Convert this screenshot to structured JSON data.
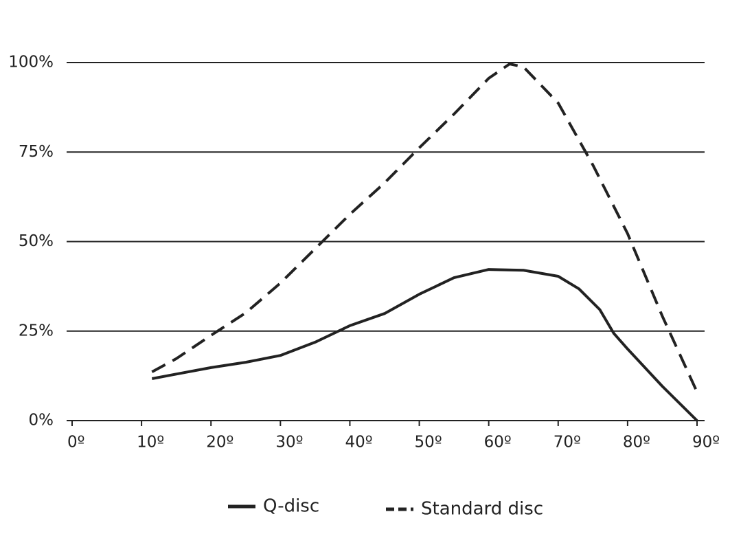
{
  "chart_data": {
    "type": "line",
    "series": [
      {
        "name": "Q-disc",
        "color": "#222222",
        "style": "solid",
        "x": [
          11.5,
          15,
          20,
          25,
          30,
          35,
          40,
          45,
          50,
          55,
          60,
          65,
          70,
          73,
          76,
          78,
          80,
          85,
          90
        ],
        "values": [
          11.7,
          13,
          14.8,
          16.3,
          18.2,
          21.9,
          26.5,
          29.9,
          35.3,
          39.9,
          42.2,
          42,
          40.3,
          36.8,
          31,
          24.4,
          20,
          9.6,
          0
        ]
      },
      {
        "name": "Standard disc",
        "color": "#222222",
        "style": "dashed",
        "x": [
          11.5,
          15,
          20,
          25,
          30,
          35,
          40,
          45,
          50,
          55,
          60,
          63,
          65,
          70,
          75,
          80,
          85,
          90
        ],
        "values": [
          13.6,
          17.3,
          23.8,
          30.1,
          38.4,
          48,
          57.6,
          66.4,
          76.2,
          85.6,
          95.6,
          99.6,
          98.8,
          88.7,
          71.4,
          52.2,
          29.2,
          8
        ]
      }
    ],
    "xlim": [
      0,
      90
    ],
    "xticks": [
      {
        "value": 0,
        "label": "0º"
      },
      {
        "value": 10,
        "label": "10º"
      },
      {
        "value": 20,
        "label": "20º"
      },
      {
        "value": 30,
        "label": "30º"
      },
      {
        "value": 40,
        "label": "40º"
      },
      {
        "value": 50,
        "label": "50º"
      },
      {
        "value": 60,
        "label": "60º"
      },
      {
        "value": 70,
        "label": "70º"
      },
      {
        "value": 80,
        "label": "80º"
      },
      {
        "value": 90,
        "label": "90º"
      }
    ],
    "ylim": [
      0,
      100
    ],
    "yticks": [
      {
        "value": 0,
        "label": "0%"
      },
      {
        "value": 25,
        "label": "25%"
      },
      {
        "value": 50,
        "label": "50%"
      },
      {
        "value": 75,
        "label": "75%"
      },
      {
        "value": 100,
        "label": "100%"
      }
    ],
    "grid": true
  }
}
